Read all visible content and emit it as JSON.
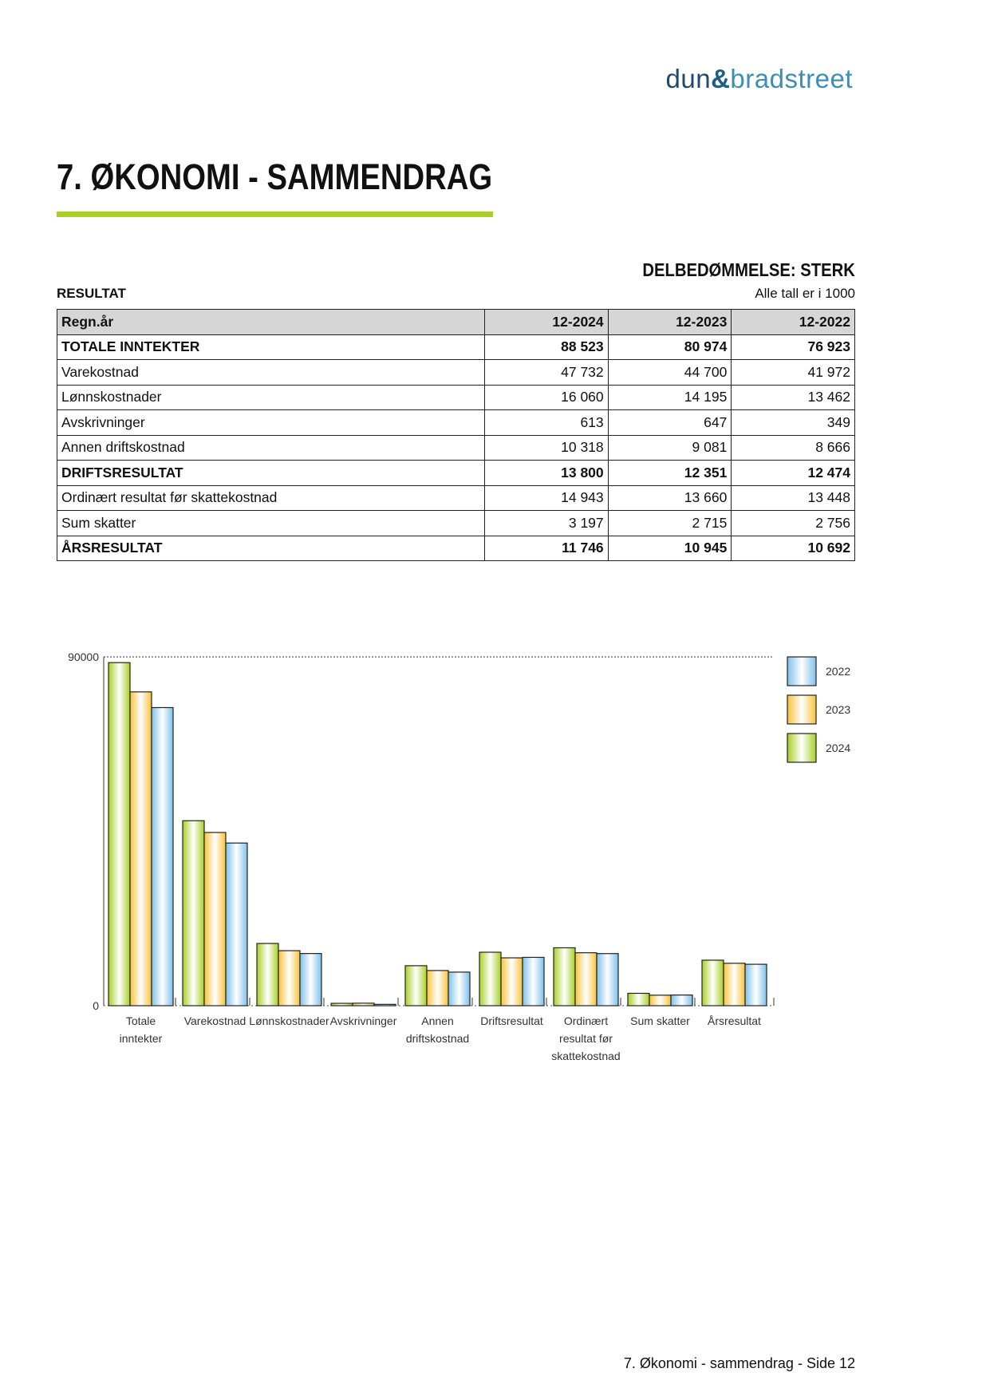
{
  "logo": {
    "part1": "dun",
    "amp": "&",
    "part2": "bradstreet"
  },
  "title": "7. ØKONOMI - SAMMENDRAG",
  "rating": "DELBEDØMMELSE: STERK",
  "section": "RESULTAT",
  "unit_note": "Alle tall er i 1000",
  "table": {
    "headers": [
      "Regn.år",
      "12-2024",
      "12-2023",
      "12-2022"
    ],
    "rows": [
      {
        "label": "TOTALE INNTEKTER",
        "bold": true,
        "values": [
          "88 523",
          "80 974",
          "76 923"
        ]
      },
      {
        "label": "Varekostnad",
        "bold": false,
        "values": [
          "47 732",
          "44 700",
          "41 972"
        ]
      },
      {
        "label": "Lønnskostnader",
        "bold": false,
        "values": [
          "16 060",
          "14 195",
          "13 462"
        ]
      },
      {
        "label": "Avskrivninger",
        "bold": false,
        "values": [
          "613",
          "647",
          "349"
        ]
      },
      {
        "label": "Annen driftskostnad",
        "bold": false,
        "values": [
          "10 318",
          "9 081",
          "8 666"
        ]
      },
      {
        "label": "DRIFTSRESULTAT",
        "bold": true,
        "values": [
          "13 800",
          "12 351",
          "12 474"
        ]
      },
      {
        "label": "Ordinært resultat før skattekostnad",
        "bold": false,
        "values": [
          "14 943",
          "13 660",
          "13 448"
        ]
      },
      {
        "label": "Sum skatter",
        "bold": false,
        "values": [
          "3 197",
          "2 715",
          "2 756"
        ]
      },
      {
        "label": "ÅRSRESULTAT",
        "bold": true,
        "values": [
          "11 746",
          "10 945",
          "10 692"
        ]
      }
    ]
  },
  "chart_data": {
    "type": "bar",
    "categories": [
      [
        "Totale",
        "inntekter"
      ],
      [
        "Varekostnad"
      ],
      [
        "Lønnskostnader"
      ],
      [
        "Avskrivninger"
      ],
      [
        "Annen",
        "driftskostnad"
      ],
      [
        "Driftsresultat"
      ],
      [
        "Ordinært",
        "resultat før",
        "skattekostnad"
      ],
      [
        "Sum skatter"
      ],
      [
        "Årsresultat"
      ]
    ],
    "series": [
      {
        "name": "2024",
        "color": "#a8cf24",
        "values": [
          88523,
          47732,
          16060,
          613,
          10318,
          13800,
          14943,
          3197,
          11746
        ]
      },
      {
        "name": "2023",
        "color": "#f8c33a",
        "values": [
          80974,
          44700,
          14195,
          647,
          9081,
          12351,
          13660,
          2715,
          10945
        ]
      },
      {
        "name": "2022",
        "color": "#7ec0ea",
        "values": [
          76923,
          41972,
          13462,
          349,
          8666,
          12474,
          13448,
          2756,
          10692
        ]
      }
    ],
    "ylim": [
      0,
      90000
    ],
    "yticks": [
      "0",
      "90000"
    ],
    "legend_order": [
      "2022",
      "2023",
      "2024"
    ],
    "legend": "right"
  },
  "footer": "7. Økonomi - sammendrag - Side 12"
}
